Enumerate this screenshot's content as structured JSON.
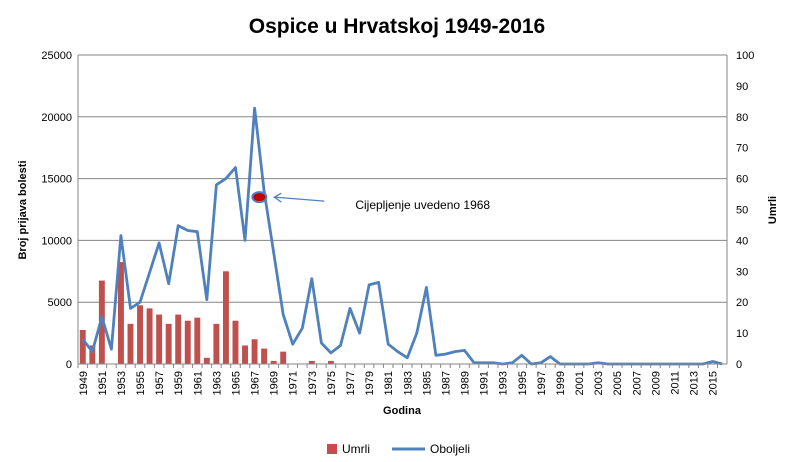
{
  "chart_data": {
    "type": "bar+line",
    "title": "Ospice u Hrvatskoj 1949-2016",
    "xlabel": "Godina",
    "ylabel_left": "Broj prijava bolesti",
    "ylabel_right": "Umrli",
    "ylim_left": [
      0,
      25000
    ],
    "ylim_right": [
      0,
      100
    ],
    "yticks_left": [
      "0",
      "5000",
      "10000",
      "15000",
      "20000",
      "25000"
    ],
    "yticks_right": [
      "0",
      "10",
      "20",
      "30",
      "40",
      "50",
      "60",
      "70",
      "80",
      "90",
      "100"
    ],
    "x_tick_labels": [
      "1949",
      "1951",
      "1953",
      "1955",
      "1957",
      "1959",
      "1961",
      "1963",
      "1965",
      "1967",
      "1969",
      "1971",
      "1973",
      "1975",
      "1977",
      "1979",
      "1981",
      "1983",
      "1985",
      "1987",
      "1989",
      "1991",
      "1993",
      "1995",
      "1997",
      "1999",
      "2001",
      "2003",
      "2005",
      "2007",
      "2009",
      "2011",
      "2013",
      "2015"
    ],
    "x": [
      1949,
      1950,
      1951,
      1952,
      1953,
      1954,
      1955,
      1956,
      1957,
      1958,
      1959,
      1960,
      1961,
      1962,
      1963,
      1964,
      1965,
      1966,
      1967,
      1968,
      1969,
      1970,
      1971,
      1972,
      1973,
      1974,
      1975,
      1976,
      1977,
      1978,
      1979,
      1980,
      1981,
      1982,
      1983,
      1984,
      1985,
      1986,
      1987,
      1988,
      1989,
      1990,
      1991,
      1992,
      1993,
      1994,
      1995,
      1996,
      1997,
      1998,
      1999,
      2000,
      2001,
      2002,
      2003,
      2004,
      2005,
      2006,
      2007,
      2008,
      2009,
      2010,
      2011,
      2012,
      2013,
      2014,
      2015,
      2016
    ],
    "series": [
      {
        "name": "Umrli",
        "type": "bar",
        "axis": "right",
        "color": "#c0504d",
        "values": [
          11,
          6,
          27,
          0,
          33,
          13,
          19,
          18,
          16,
          13,
          16,
          14,
          15,
          2,
          13,
          30,
          14,
          6,
          8,
          5,
          1,
          4,
          0,
          0,
          1,
          0,
          1,
          0,
          0,
          0,
          0,
          0,
          0,
          0,
          0,
          0,
          0,
          0,
          0,
          0,
          0,
          0,
          0,
          0,
          0,
          0,
          0,
          0,
          0,
          0,
          0,
          0,
          0,
          0,
          0,
          0,
          0,
          0,
          0,
          0,
          0,
          0,
          0,
          0,
          0,
          0,
          0,
          0
        ]
      },
      {
        "name": "Oboljeli",
        "type": "line",
        "axis": "left",
        "color": "#4f81bd",
        "values": [
          2000,
          1000,
          3800,
          1200,
          10400,
          4500,
          5000,
          7400,
          9800,
          6500,
          11200,
          10800,
          10700,
          5200,
          14500,
          15000,
          15900,
          10000,
          20700,
          14000,
          9000,
          4000,
          1600,
          2900,
          6900,
          1700,
          900,
          1500,
          4500,
          2500,
          6400,
          6600,
          1600,
          1000,
          500,
          2500,
          6200,
          700,
          800,
          1000,
          1100,
          100,
          100,
          100,
          0,
          100,
          700,
          0,
          100,
          600,
          0,
          0,
          0,
          0,
          100,
          0,
          0,
          0,
          0,
          0,
          0,
          0,
          0,
          0,
          0,
          0,
          200,
          0
        ]
      }
    ],
    "annotation": {
      "text": "Cijepljenje uvedeno 1968",
      "x": 1968,
      "y": 13500,
      "marker_color": "#c00000",
      "arrow_color": "#4f81bd"
    },
    "grid": true,
    "legend_position": "bottom"
  }
}
